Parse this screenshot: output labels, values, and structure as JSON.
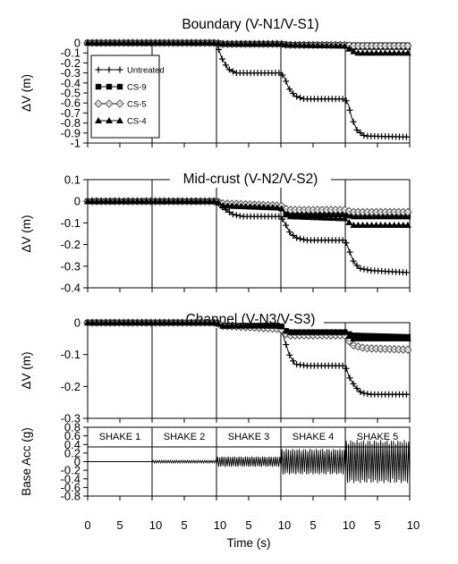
{
  "chart_data": {
    "type": "line",
    "xlabel": "Time (s)",
    "x_ticks": [
      "0",
      "5",
      "10",
      "5",
      "10",
      "5",
      "10",
      "5",
      "10",
      "5",
      "10"
    ],
    "shake_duration_s": 10,
    "legend": {
      "placement": "inside top-left of first panel",
      "entries": [
        {
          "name": "Untreated",
          "marker": "plus"
        },
        {
          "name": "CS-9",
          "marker": "square"
        },
        {
          "name": "CS-5",
          "marker": "diamond"
        },
        {
          "name": "CS-4",
          "marker": "triangle"
        }
      ]
    },
    "panels": [
      {
        "title": "Boundary (V-N1/V-S1)",
        "ylabel": "ΔV (m)",
        "ylim": [
          -1,
          0
        ],
        "yticks": [
          0,
          -0.1,
          -0.2,
          -0.3,
          -0.4,
          -0.5,
          -0.6,
          -0.7,
          -0.8,
          -0.9,
          -1
        ],
        "ytick_labels": [
          "0",
          "-0.1",
          "-0.2",
          "-0.3",
          "-0.4",
          "-0.5",
          "-0.6",
          "-0.7",
          "-0.8",
          "-0.9",
          "-1"
        ],
        "series": [
          {
            "name": "Untreated",
            "points": [
              [
                0,
                0
              ],
              [
                10,
                0
              ],
              [
                20,
                0
              ],
              [
                20.8,
                -0.15
              ],
              [
                21.8,
                -0.26
              ],
              [
                23,
                -0.3
              ],
              [
                30,
                -0.3
              ],
              [
                30.6,
                -0.35
              ],
              [
                31.2,
                -0.45
              ],
              [
                32.2,
                -0.53
              ],
              [
                33.6,
                -0.56
              ],
              [
                40,
                -0.56
              ],
              [
                40.5,
                -0.62
              ],
              [
                41,
                -0.75
              ],
              [
                41.8,
                -0.87
              ],
              [
                43,
                -0.93
              ],
              [
                50,
                -0.94
              ]
            ]
          },
          {
            "name": "CS-9",
            "points": [
              [
                0,
                0
              ],
              [
                20,
                0
              ],
              [
                21,
                -0.01
              ],
              [
                30,
                -0.01
              ],
              [
                31,
                -0.02
              ],
              [
                40,
                -0.02
              ],
              [
                41,
                -0.04
              ],
              [
                50,
                -0.04
              ]
            ]
          },
          {
            "name": "CS-5",
            "points": [
              [
                0,
                0
              ],
              [
                20,
                0
              ],
              [
                21,
                -0.01
              ],
              [
                30,
                -0.01
              ],
              [
                31,
                -0.02
              ],
              [
                40,
                -0.02
              ],
              [
                41,
                -0.03
              ],
              [
                50,
                -0.03
              ]
            ]
          },
          {
            "name": "CS-4",
            "points": [
              [
                0,
                0
              ],
              [
                20,
                0
              ],
              [
                21,
                -0.01
              ],
              [
                30,
                -0.01
              ],
              [
                31,
                -0.02
              ],
              [
                40,
                -0.03
              ],
              [
                41,
                -0.08
              ],
              [
                42,
                -0.1
              ],
              [
                50,
                -0.1
              ]
            ]
          }
        ]
      },
      {
        "title": "Mid-crust (V-N2/V-S2)",
        "ylabel": "ΔV (m)",
        "ylim": [
          -0.4,
          0.1
        ],
        "yticks": [
          0.1,
          0,
          -0.1,
          -0.2,
          -0.3,
          -0.4
        ],
        "ytick_labels": [
          "0.1",
          "0",
          "-0.1",
          "-0.2",
          "-0.3",
          "-0.4"
        ],
        "series": [
          {
            "name": "Untreated",
            "points": [
              [
                0,
                0
              ],
              [
                20,
                0
              ],
              [
                21,
                -0.03
              ],
              [
                22.5,
                -0.06
              ],
              [
                24,
                -0.07
              ],
              [
                30,
                -0.07
              ],
              [
                30.6,
                -0.1
              ],
              [
                31.5,
                -0.15
              ],
              [
                32.5,
                -0.17
              ],
              [
                34,
                -0.18
              ],
              [
                40,
                -0.18
              ],
              [
                40.5,
                -0.22
              ],
              [
                41.3,
                -0.28
              ],
              [
                42.2,
                -0.31
              ],
              [
                44,
                -0.32
              ],
              [
                50,
                -0.33
              ]
            ]
          },
          {
            "name": "CS-9",
            "points": [
              [
                0,
                0
              ],
              [
                20,
                0
              ],
              [
                21,
                -0.02
              ],
              [
                30,
                -0.03
              ],
              [
                31,
                -0.06
              ],
              [
                40,
                -0.06
              ],
              [
                41,
                -0.07
              ],
              [
                50,
                -0.07
              ]
            ]
          },
          {
            "name": "CS-5",
            "points": [
              [
                0,
                0
              ],
              [
                20,
                0
              ],
              [
                21,
                -0.01
              ],
              [
                30,
                -0.02
              ],
              [
                31,
                -0.04
              ],
              [
                40,
                -0.04
              ],
              [
                41,
                -0.05
              ],
              [
                50,
                -0.05
              ]
            ]
          },
          {
            "name": "CS-4",
            "points": [
              [
                0,
                0
              ],
              [
                20,
                0
              ],
              [
                21,
                -0.02
              ],
              [
                30,
                -0.03
              ],
              [
                31,
                -0.07
              ],
              [
                40,
                -0.08
              ],
              [
                41,
                -0.11
              ],
              [
                50,
                -0.11
              ]
            ]
          }
        ]
      },
      {
        "title": "Channel (V-N3/V-S3)",
        "ylabel": "ΔV (m)",
        "ylim": [
          -0.3,
          0
        ],
        "yticks": [
          0,
          -0.1,
          -0.2,
          -0.3
        ],
        "ytick_labels": [
          "0",
          "-0.1",
          "-0.2",
          "-0.3"
        ],
        "series": [
          {
            "name": "Untreated",
            "points": [
              [
                0,
                0
              ],
              [
                20,
                0
              ],
              [
                21,
                -0.01
              ],
              [
                30,
                -0.01
              ],
              [
                30.5,
                -0.05
              ],
              [
                31.3,
                -0.1
              ],
              [
                32.2,
                -0.13
              ],
              [
                34,
                -0.135
              ],
              [
                40,
                -0.135
              ],
              [
                40.6,
                -0.17
              ],
              [
                41.5,
                -0.2
              ],
              [
                42.5,
                -0.22
              ],
              [
                44,
                -0.225
              ],
              [
                50,
                -0.225
              ]
            ]
          },
          {
            "name": "CS-9",
            "points": [
              [
                0,
                0
              ],
              [
                20,
                0
              ],
              [
                21,
                -0.01
              ],
              [
                30,
                -0.01
              ],
              [
                31,
                -0.03
              ],
              [
                40,
                -0.03
              ],
              [
                41,
                -0.04
              ],
              [
                50,
                -0.045
              ]
            ]
          },
          {
            "name": "CS-5",
            "points": [
              [
                0,
                0
              ],
              [
                20,
                0
              ],
              [
                21,
                -0.01
              ],
              [
                30,
                -0.02
              ],
              [
                31,
                -0.04
              ],
              [
                40,
                -0.04
              ],
              [
                41,
                -0.07
              ],
              [
                43,
                -0.08
              ],
              [
                50,
                -0.085
              ]
            ]
          },
          {
            "name": "CS-4",
            "points": [
              [
                0,
                0
              ],
              [
                20,
                0
              ],
              [
                21,
                -0.01
              ],
              [
                30,
                -0.01
              ],
              [
                31,
                -0.03
              ],
              [
                40,
                -0.03
              ],
              [
                41,
                -0.05
              ],
              [
                50,
                -0.05
              ]
            ]
          }
        ]
      },
      {
        "title": "",
        "ylabel": "Base Acc (g)",
        "ylim": [
          -0.8,
          0.8
        ],
        "yticks": [
          0.8,
          0.6,
          0.4,
          0.2,
          0,
          -0.2,
          -0.4,
          -0.6,
          -0.8
        ],
        "ytick_labels": [
          "0.8",
          "0.6",
          "0.4",
          "0.2",
          "0",
          "-0.2",
          "-0.4",
          "-0.6",
          "-0.8"
        ],
        "shakes": [
          {
            "label": "SHAKE 1",
            "amplitude_g": 0.0
          },
          {
            "label": "SHAKE 2",
            "amplitude_g": 0.03
          },
          {
            "label": "SHAKE 3",
            "amplitude_g": 0.12
          },
          {
            "label": "SHAKE 4",
            "amplitude_g": 0.3
          },
          {
            "label": "SHAKE 5",
            "amplitude_g": 0.5
          }
        ]
      }
    ]
  }
}
